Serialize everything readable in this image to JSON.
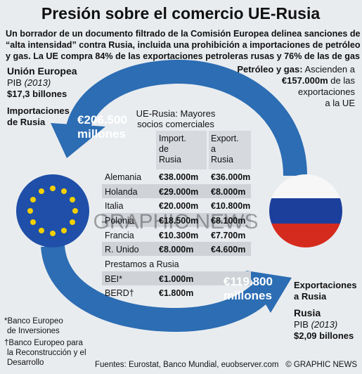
{
  "header": {
    "title": "Presión sobre el comercio UE-Rusia",
    "intro": [
      "Un borrador de un documento filtrado de la Comisión Europea delinea sanciones de",
      "“alta intensidad” contra Rusia, incluida una prohibición a importaciones de petróleo",
      "y gas. La UE compra 84% de las exportaciones petroleras rusas y 76% de las de gas"
    ]
  },
  "eu": {
    "name": "Unión Europea",
    "gdp_label": "PIB",
    "gdp_year": "(2013)",
    "gdp": "$17,3 billones",
    "imports_label": [
      "Importaciones",
      "de Rusia"
    ],
    "imports": [
      "€206.500",
      "millones"
    ]
  },
  "oil_note": {
    "label": "Petróleo y gas:",
    "text": "Ascienden a",
    "amount": "€157.000m",
    "rest": [
      "de las",
      "exportaciones",
      "a la UE"
    ]
  },
  "table": {
    "title": [
      "UE-Rusia: Mayores",
      "socios comerciales"
    ],
    "headers": [
      [
        "Import.",
        "de",
        "Rusia"
      ],
      [
        "Export.",
        "a",
        "Rusia"
      ]
    ],
    "rows": [
      [
        "Alemania",
        "€38.000m",
        "€36.000m"
      ],
      [
        "Holanda",
        "€29.000m",
        "€8.000m"
      ],
      [
        "Italia",
        "€20.000m",
        "€10.800m"
      ],
      [
        "Polonia",
        "€18.500m",
        "€8.100m"
      ],
      [
        "Francia",
        "€10.300m",
        "€7.700m"
      ],
      [
        "R. Unido",
        "€8.000m",
        "€4.600m"
      ]
    ],
    "loans_title": "Prestamos a Rusia",
    "loans": [
      [
        "BEI*",
        "€1.000m"
      ],
      [
        "BERD†",
        "€1.800m"
      ]
    ]
  },
  "russia": {
    "exports_label": [
      "Exportaciones",
      "a Rusia"
    ],
    "exports": [
      "€119.800",
      "millones"
    ],
    "name": "Rusia",
    "gdp_label": "PIB",
    "gdp_year": "(2013)",
    "gdp": "$2,09 billones"
  },
  "footnotes": [
    "*Banco Europeo",
    "de Inversiones",
    "†Banco Europeo para",
    "la Reconstrucción y el",
    "Desarrollo"
  ],
  "sources": "Fuentes: Eurostat, Banco Mundial, euobserver.com",
  "credit": "© GRAPHIC NEWS",
  "watermark": "GRAPHIC NEWS"
}
